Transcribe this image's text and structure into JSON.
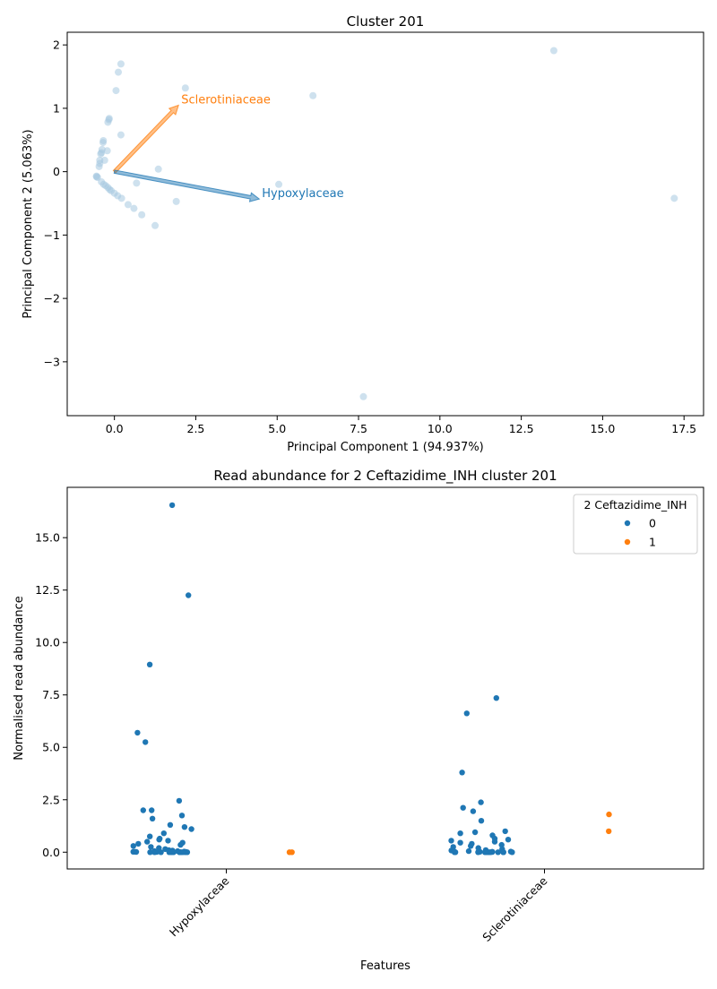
{
  "chart_data": [
    {
      "type": "scatter",
      "title": "Cluster 201",
      "xlabel": "Principal Component 1 (94.937%)",
      "ylabel": "Principal Component 2 (5.063%)",
      "xlim": [
        -1.45,
        18.1
      ],
      "ylim": [
        -3.85,
        2.2
      ],
      "xticks": [
        0.0,
        2.5,
        5.0,
        7.5,
        10.0,
        12.5,
        15.0,
        17.5
      ],
      "xtick_labels": [
        "0.0",
        "2.5",
        "5.0",
        "7.5",
        "10.0",
        "12.5",
        "15.0",
        "17.5"
      ],
      "yticks": [
        -3,
        -2,
        -1,
        0,
        1,
        2
      ],
      "ytick_labels": [
        "−3",
        "−2",
        "−1",
        "0",
        "1",
        "2"
      ],
      "grid": false,
      "point_color": "#a6c8e0",
      "points": [
        {
          "x": -0.55,
          "y": -0.08
        },
        {
          "x": -0.55,
          "y": -0.07
        },
        {
          "x": -0.52,
          "y": -0.09
        },
        {
          "x": -0.47,
          "y": 0.08
        },
        {
          "x": -0.45,
          "y": 0.13
        },
        {
          "x": -0.45,
          "y": 0.18
        },
        {
          "x": -0.42,
          "y": 0.28
        },
        {
          "x": -0.4,
          "y": 0.3
        },
        {
          "x": -0.38,
          "y": 0.35
        },
        {
          "x": -0.35,
          "y": 0.46
        },
        {
          "x": -0.34,
          "y": 0.49
        },
        {
          "x": -0.3,
          "y": 0.18
        },
        {
          "x": -0.22,
          "y": 0.33
        },
        {
          "x": -0.2,
          "y": 0.78
        },
        {
          "x": -0.17,
          "y": 0.82
        },
        {
          "x": -0.16,
          "y": 0.84
        },
        {
          "x": -0.4,
          "y": -0.16
        },
        {
          "x": -0.33,
          "y": -0.2
        },
        {
          "x": -0.27,
          "y": -0.22
        },
        {
          "x": -0.2,
          "y": -0.25
        },
        {
          "x": -0.15,
          "y": -0.28
        },
        {
          "x": -0.1,
          "y": -0.3
        },
        {
          "x": 0.0,
          "y": -0.34
        },
        {
          "x": 0.1,
          "y": -0.38
        },
        {
          "x": 0.22,
          "y": -0.42
        },
        {
          "x": 0.42,
          "y": -0.52
        },
        {
          "x": 0.6,
          "y": -0.58
        },
        {
          "x": 0.84,
          "y": -0.68
        },
        {
          "x": 0.68,
          "y": -0.18
        },
        {
          "x": 1.25,
          "y": -0.85
        },
        {
          "x": 1.35,
          "y": 0.04
        },
        {
          "x": 1.9,
          "y": -0.47
        },
        {
          "x": 0.2,
          "y": 0.58
        },
        {
          "x": 0.05,
          "y": 1.28
        },
        {
          "x": 0.12,
          "y": 1.57
        },
        {
          "x": 0.2,
          "y": 1.7
        },
        {
          "x": 2.18,
          "y": 1.32
        },
        {
          "x": 5.05,
          "y": -0.2
        },
        {
          "x": 6.1,
          "y": 1.2
        },
        {
          "x": 7.65,
          "y": -3.55
        },
        {
          "x": 13.5,
          "y": 1.91
        },
        {
          "x": 17.2,
          "y": -0.42
        }
      ],
      "loadings": [
        {
          "label": "Sclerotiniaceae",
          "x": 1.97,
          "y": 1.05,
          "color": "#ff7f0e"
        },
        {
          "label": "Hypoxylaceae",
          "x": 4.45,
          "y": -0.43,
          "color": "#1f77b4"
        }
      ]
    },
    {
      "type": "scatter",
      "title": "Read abundance for 2 Ceftazidime_INH cluster 201",
      "xlabel": "Features",
      "ylabel": "Normalised read abundance",
      "categories": [
        "Hypoxylaceae",
        "Sclerotiniaceae"
      ],
      "ylim": [
        -0.8,
        17.4
      ],
      "yticks": [
        0.0,
        2.5,
        5.0,
        7.5,
        10.0,
        12.5,
        15.0
      ],
      "ytick_labels": [
        "0.0",
        "2.5",
        "5.0",
        "7.5",
        "10.0",
        "12.5",
        "15.0"
      ],
      "grid": false,
      "legend": {
        "title": "2 Ceftazidime_INH",
        "placement": "top-right",
        "entries": [
          {
            "label": "0",
            "color": "#1f77b4"
          },
          {
            "label": "1",
            "color": "#ff7f0e"
          }
        ]
      },
      "series": [
        {
          "group": "0",
          "color": "#1f77b4",
          "points": [
            {
              "category": "Hypoxylaceae",
              "value": 16.55
            },
            {
              "category": "Hypoxylaceae",
              "value": 12.25
            },
            {
              "category": "Hypoxylaceae",
              "value": 8.95
            },
            {
              "category": "Hypoxylaceae",
              "value": 5.7
            },
            {
              "category": "Hypoxylaceae",
              "value": 5.25
            },
            {
              "category": "Hypoxylaceae",
              "value": 2.45
            },
            {
              "category": "Hypoxylaceae",
              "value": 2.0
            },
            {
              "category": "Hypoxylaceae",
              "value": 2.0
            },
            {
              "category": "Hypoxylaceae",
              "value": 1.75
            },
            {
              "category": "Hypoxylaceae",
              "value": 1.6
            },
            {
              "category": "Hypoxylaceae",
              "value": 1.3
            },
            {
              "category": "Hypoxylaceae",
              "value": 1.2
            },
            {
              "category": "Hypoxylaceae",
              "value": 1.1
            },
            {
              "category": "Hypoxylaceae",
              "value": 0.9
            },
            {
              "category": "Hypoxylaceae",
              "value": 0.75
            },
            {
              "category": "Hypoxylaceae",
              "value": 0.65
            },
            {
              "category": "Hypoxylaceae",
              "value": 0.6
            },
            {
              "category": "Hypoxylaceae",
              "value": 0.55
            },
            {
              "category": "Hypoxylaceae",
              "value": 0.5
            },
            {
              "category": "Hypoxylaceae",
              "value": 0.45
            },
            {
              "category": "Hypoxylaceae",
              "value": 0.4
            },
            {
              "category": "Hypoxylaceae",
              "value": 0.35
            },
            {
              "category": "Hypoxylaceae",
              "value": 0.3
            },
            {
              "category": "Hypoxylaceae",
              "value": 0.25
            },
            {
              "category": "Hypoxylaceae",
              "value": 0.2
            },
            {
              "category": "Hypoxylaceae",
              "value": 0.15
            },
            {
              "category": "Hypoxylaceae",
              "value": 0.1
            },
            {
              "category": "Hypoxylaceae",
              "value": 0.08
            },
            {
              "category": "Hypoxylaceae",
              "value": 0.05
            },
            {
              "category": "Hypoxylaceae",
              "value": 0.05
            },
            {
              "category": "Hypoxylaceae",
              "value": 0.03
            },
            {
              "category": "Hypoxylaceae",
              "value": 0.02
            },
            {
              "category": "Hypoxylaceae",
              "value": 0.02
            },
            {
              "category": "Hypoxylaceae",
              "value": 0.01
            },
            {
              "category": "Hypoxylaceae",
              "value": 0.01
            },
            {
              "category": "Hypoxylaceae",
              "value": 0.01
            },
            {
              "category": "Hypoxylaceae",
              "value": 0.0
            },
            {
              "category": "Hypoxylaceae",
              "value": 0.0
            },
            {
              "category": "Hypoxylaceae",
              "value": 0.0
            },
            {
              "category": "Hypoxylaceae",
              "value": 0.0
            },
            {
              "category": "Hypoxylaceae",
              "value": 0.0
            },
            {
              "category": "Hypoxylaceae",
              "value": 0.0
            },
            {
              "category": "Hypoxylaceae",
              "value": 0.0
            },
            {
              "category": "Hypoxylaceae",
              "value": 0.0
            },
            {
              "category": "Hypoxylaceae",
              "value": 0.0
            },
            {
              "category": "Hypoxylaceae",
              "value": 0.0
            },
            {
              "category": "Hypoxylaceae",
              "value": 0.0
            },
            {
              "category": "Hypoxylaceae",
              "value": 0.0
            },
            {
              "category": "Hypoxylaceae",
              "value": 0.0
            },
            {
              "category": "Hypoxylaceae",
              "value": 0.0
            },
            {
              "category": "Sclerotiniaceae",
              "value": 7.35
            },
            {
              "category": "Sclerotiniaceae",
              "value": 6.62
            },
            {
              "category": "Sclerotiniaceae",
              "value": 3.8
            },
            {
              "category": "Sclerotiniaceae",
              "value": 2.38
            },
            {
              "category": "Sclerotiniaceae",
              "value": 2.12
            },
            {
              "category": "Sclerotiniaceae",
              "value": 1.95
            },
            {
              "category": "Sclerotiniaceae",
              "value": 1.5
            },
            {
              "category": "Sclerotiniaceae",
              "value": 1.0
            },
            {
              "category": "Sclerotiniaceae",
              "value": 0.95
            },
            {
              "category": "Sclerotiniaceae",
              "value": 0.9
            },
            {
              "category": "Sclerotiniaceae",
              "value": 0.8
            },
            {
              "category": "Sclerotiniaceae",
              "value": 0.65
            },
            {
              "category": "Sclerotiniaceae",
              "value": 0.6
            },
            {
              "category": "Sclerotiniaceae",
              "value": 0.55
            },
            {
              "category": "Sclerotiniaceae",
              "value": 0.5
            },
            {
              "category": "Sclerotiniaceae",
              "value": 0.45
            },
            {
              "category": "Sclerotiniaceae",
              "value": 0.4
            },
            {
              "category": "Sclerotiniaceae",
              "value": 0.35
            },
            {
              "category": "Sclerotiniaceae",
              "value": 0.3
            },
            {
              "category": "Sclerotiniaceae",
              "value": 0.25
            },
            {
              "category": "Sclerotiniaceae",
              "value": 0.2
            },
            {
              "category": "Sclerotiniaceae",
              "value": 0.15
            },
            {
              "category": "Sclerotiniaceae",
              "value": 0.1
            },
            {
              "category": "Sclerotiniaceae",
              "value": 0.08
            },
            {
              "category": "Sclerotiniaceae",
              "value": 0.05
            },
            {
              "category": "Sclerotiniaceae",
              "value": 0.05
            },
            {
              "category": "Sclerotiniaceae",
              "value": 0.03
            },
            {
              "category": "Sclerotiniaceae",
              "value": 0.02
            },
            {
              "category": "Sclerotiniaceae",
              "value": 0.02
            },
            {
              "category": "Sclerotiniaceae",
              "value": 0.01
            },
            {
              "category": "Sclerotiniaceae",
              "value": 0.01
            },
            {
              "category": "Sclerotiniaceae",
              "value": 0.0
            },
            {
              "category": "Sclerotiniaceae",
              "value": 0.0
            },
            {
              "category": "Sclerotiniaceae",
              "value": 0.0
            },
            {
              "category": "Sclerotiniaceae",
              "value": 0.0
            },
            {
              "category": "Sclerotiniaceae",
              "value": 0.0
            },
            {
              "category": "Sclerotiniaceae",
              "value": 0.0
            },
            {
              "category": "Sclerotiniaceae",
              "value": 0.0
            },
            {
              "category": "Sclerotiniaceae",
              "value": 0.0
            },
            {
              "category": "Sclerotiniaceae",
              "value": 0.0
            },
            {
              "category": "Sclerotiniaceae",
              "value": 0.0
            },
            {
              "category": "Sclerotiniaceae",
              "value": 0.0
            },
            {
              "category": "Sclerotiniaceae",
              "value": 0.0
            },
            {
              "category": "Sclerotiniaceae",
              "value": 0.0
            }
          ]
        },
        {
          "group": "1",
          "color": "#ff7f0e",
          "points": [
            {
              "category": "Hypoxylaceae",
              "value": 0.0
            },
            {
              "category": "Hypoxylaceae",
              "value": 0.0
            },
            {
              "category": "Sclerotiniaceae",
              "value": 1.8
            },
            {
              "category": "Sclerotiniaceae",
              "value": 1.0
            }
          ]
        }
      ]
    }
  ]
}
